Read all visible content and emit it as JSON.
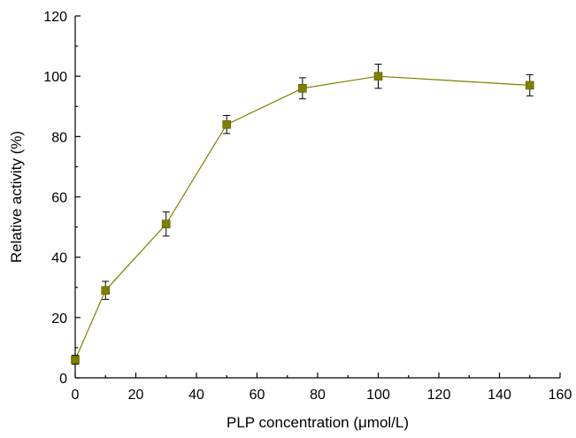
{
  "chart_data": {
    "type": "line",
    "title": "",
    "xlabel": "PLP concentration (μmol/L)",
    "ylabel": "Relative activity (%)",
    "xlim": [
      0,
      160
    ],
    "ylim": [
      0,
      120
    ],
    "xticks": [
      0,
      20,
      40,
      60,
      80,
      100,
      120,
      140,
      160
    ],
    "yticks": [
      0,
      20,
      40,
      60,
      80,
      100,
      120
    ],
    "grid": false,
    "legend": "none",
    "series": [
      {
        "x": [
          0,
          10,
          30,
          50,
          75,
          100,
          150
        ],
        "y": [
          6,
          29,
          51,
          84,
          96,
          100,
          97
        ],
        "err": [
          1.5,
          3,
          4,
          3,
          3.5,
          4,
          3.5
        ],
        "color": "#7f7f00",
        "marker": "square"
      }
    ]
  }
}
